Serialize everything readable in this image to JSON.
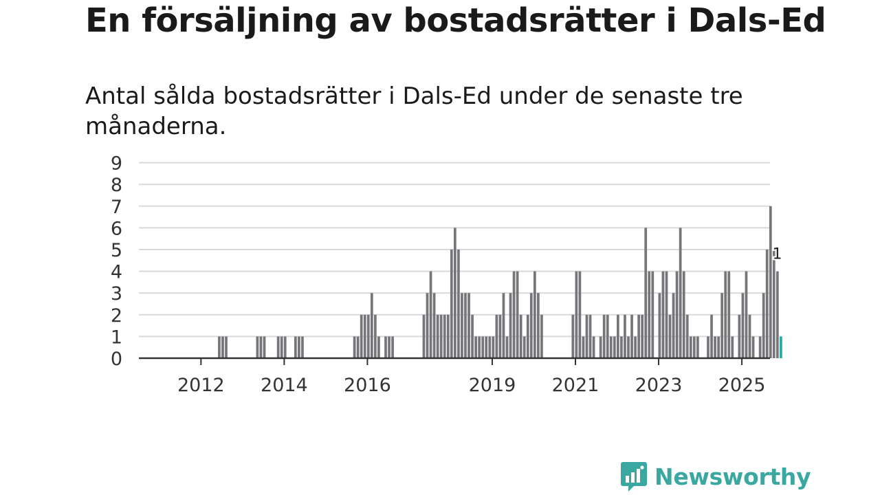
{
  "title": "En försäljning av bostadsrätter i Dals-Ed",
  "subtitle": "Antal sålda bostadsrätter i Dals-Ed under de senaste tre månaderna.",
  "logo": {
    "text": "Newsworthy",
    "icon": "newsworthy-logo-icon"
  },
  "colors": {
    "bar": "#76767a",
    "highlight": "#2aa8a8",
    "grid": "#d9d9d9",
    "axis": "#333333",
    "brand": "#3aa7a0"
  },
  "chart_data": {
    "type": "bar",
    "title": "Antal sålda bostadsrätter i Dals-Ed under de senaste tre månaderna.",
    "xlabel": "",
    "ylabel": "",
    "ylim": [
      0,
      9
    ],
    "yticks": [
      0,
      1,
      2,
      3,
      4,
      5,
      6,
      7,
      8,
      9
    ],
    "grid": true,
    "x_ticks": [
      {
        "label": "2012",
        "index": 8
      },
      {
        "label": "2014",
        "index": 32
      },
      {
        "label": "2016",
        "index": 56
      },
      {
        "label": "2019",
        "index": 92
      },
      {
        "label": "2021",
        "index": 116
      },
      {
        "label": "2023",
        "index": 140
      },
      {
        "label": "2025",
        "index": 164
      }
    ],
    "values": [
      0,
      0,
      0,
      0,
      0,
      0,
      0,
      0,
      0,
      0,
      0,
      0,
      0,
      1,
      1,
      1,
      0,
      0,
      0,
      0,
      0,
      0,
      0,
      0,
      1,
      1,
      1,
      0,
      0,
      0,
      1,
      1,
      1,
      0,
      0,
      1,
      1,
      1,
      0,
      0,
      0,
      0,
      0,
      0,
      0,
      0,
      0,
      0,
      0,
      0,
      0,
      0,
      1,
      1,
      2,
      2,
      2,
      3,
      2,
      1,
      0,
      1,
      1,
      1,
      0,
      0,
      0,
      0,
      0,
      0,
      0,
      0,
      2,
      3,
      4,
      3,
      2,
      2,
      2,
      2,
      5,
      6,
      5,
      3,
      3,
      3,
      2,
      1,
      1,
      1,
      1,
      1,
      1,
      2,
      2,
      3,
      1,
      3,
      4,
      4,
      2,
      1,
      2,
      3,
      4,
      3,
      2,
      0,
      0,
      0,
      0,
      0,
      0,
      0,
      0,
      2,
      4,
      4,
      1,
      2,
      2,
      1,
      0,
      1,
      2,
      2,
      1,
      1,
      2,
      1,
      2,
      1,
      2,
      1,
      2,
      2,
      6,
      4,
      4,
      0,
      3,
      4,
      4,
      2,
      3,
      4,
      6,
      4,
      2,
      1,
      1,
      1,
      0,
      0,
      1,
      2,
      1,
      1,
      3,
      4,
      4,
      1,
      0,
      2,
      3,
      4,
      2,
      1,
      0,
      1,
      3,
      5,
      7,
      5,
      4,
      1
    ],
    "highlight_last": true,
    "annotations": [
      {
        "index": 174,
        "text": "1"
      }
    ]
  }
}
